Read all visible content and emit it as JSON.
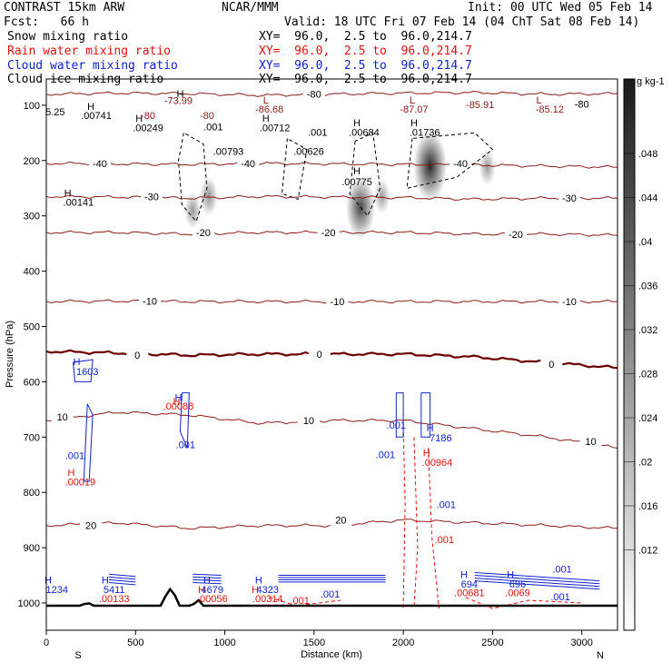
{
  "header": {
    "model": "CONTRAST 15km ARW",
    "org": "NCAR/MMM",
    "init": "Init: 00 UTC Wed 05 Feb 14",
    "fcst": "Fcst:   66 h",
    "valid": "Valid: 18 UTC Fri 07 Feb 14 (04 ChT Sat 08 Feb 14)"
  },
  "fields": [
    {
      "name": "Snow mixing ratio",
      "xy": "XY=  96.0,  2.5 to  96.0,214.7",
      "color": "#000000"
    },
    {
      "name": "Rain water mixing ratio",
      "xy": "XY=  96.0,  2.5 to  96.0,214.7",
      "color": "#e01010"
    },
    {
      "name": "Cloud water mixing ratio",
      "xy": "XY=  96.0,  2.5 to  96.0,214.7",
      "color": "#1020d0"
    },
    {
      "name": "Cloud ice mixing ratio",
      "xy": "XY=  96.0,  2.5 to  96.0,214.7",
      "color": "#000000"
    }
  ],
  "chart_data": {
    "type": "contour cross-section",
    "xlabel": "Distance (km)",
    "ylabel": "Pressure (hPa)",
    "xlim": [
      0,
      3200
    ],
    "ylim": [
      1050,
      70
    ],
    "xticks": [
      0,
      500,
      1000,
      1500,
      2000,
      2500,
      3000
    ],
    "yticks": [
      100,
      200,
      300,
      400,
      500,
      600,
      700,
      800,
      900,
      1000
    ],
    "direction_left": "S",
    "direction_right": "N",
    "colorbar": {
      "unit": "g kg-1",
      "labels": [
        ".048",
        ".044",
        ".04",
        ".036",
        ".032",
        ".028",
        ".024",
        ".02",
        ".016",
        ".012"
      ],
      "low_color": "#ffffff",
      "high_color": "#000000"
    },
    "isotherms": [
      {
        "label": "-80",
        "p": [
          80,
          78,
          79,
          82,
          80,
          78,
          77,
          80,
          79
        ],
        "label_at": [
          [
            1500,
            80
          ],
          [
            3000,
            98
          ]
        ]
      },
      {
        "label": "-40",
        "p": [
          205,
          206,
          207,
          205,
          206,
          207,
          208,
          210,
          212
        ],
        "label_at": [
          [
            300,
            205
          ],
          [
            1130,
            205
          ],
          [
            2320,
            205
          ]
        ]
      },
      {
        "label": "-30",
        "p": [
          265,
          266,
          268,
          265,
          266,
          267,
          270,
          268,
          268
        ],
        "label_at": [
          [
            590,
            265
          ],
          [
            2930,
            268
          ]
        ]
      },
      {
        "label": "-20",
        "p": [
          330,
          330,
          333,
          330,
          330,
          330,
          333,
          333,
          335
        ],
        "label_at": [
          [
            880,
            330
          ],
          [
            1580,
            330
          ],
          [
            2630,
            333
          ]
        ]
      },
      {
        "label": "-10",
        "p": [
          455,
          454,
          455,
          455,
          455,
          455,
          455,
          455,
          455
        ],
        "label_at": [
          [
            580,
            454
          ],
          [
            1630,
            455
          ],
          [
            2930,
            455
          ]
        ]
      },
      {
        "label": "0",
        "p": [
          545,
          548,
          552,
          550,
          550,
          550,
          555,
          565,
          575
        ],
        "label_at": [
          [
            510,
            552
          ],
          [
            1530,
            550
          ],
          [
            2830,
            568
          ]
        ]
      },
      {
        "label": "10",
        "p": [
          670,
          655,
          660,
          675,
          670,
          670,
          685,
          700,
          720
        ],
        "label_at": [
          [
            90,
            663
          ],
          [
            1470,
            670
          ],
          [
            3050,
            708
          ]
        ]
      },
      {
        "label": "20",
        "p": [
          860,
          855,
          865,
          860,
          860,
          850,
          855,
          860,
          865
        ],
        "label_at": [
          [
            250,
            860
          ],
          [
            1650,
            850
          ]
        ]
      }
    ],
    "labels": [
      {
        "text": "H",
        "x": 750,
        "y": 85,
        "color": "#000000"
      },
      {
        "text": "-73.99",
        "x": 740,
        "y": 98,
        "color": "#8b1a1a"
      },
      {
        "text": "5.25",
        "x": 50,
        "y": 118,
        "color": "#000000"
      },
      {
        "text": "H",
        "x": 250,
        "y": 108,
        "color": "#000000"
      },
      {
        "text": ".00741",
        "x": 280,
        "y": 125,
        "color": "#000000"
      },
      {
        "text": "H",
        "x": 520,
        "y": 130,
        "color": "#000000"
      },
      {
        "text": ".00249",
        "x": 570,
        "y": 147,
        "color": "#000000"
      },
      {
        "text": "-80",
        "x": 570,
        "y": 125,
        "color": "#8b1a1a"
      },
      {
        "text": "-80",
        "x": 900,
        "y": 125,
        "color": "#8b1a1a"
      },
      {
        "text": ".001",
        "x": 935,
        "y": 145,
        "color": "#000000"
      },
      {
        "text": "L",
        "x": 1230,
        "y": 97,
        "color": "#8b1a1a"
      },
      {
        "text": "-86.68",
        "x": 1250,
        "y": 113,
        "color": "#8b1a1a"
      },
      {
        "text": "H",
        "x": 1230,
        "y": 130,
        "color": "#000000"
      },
      {
        "text": ".00712",
        "x": 1280,
        "y": 147,
        "color": "#000000"
      },
      {
        "text": ".001",
        "x": 1520,
        "y": 155,
        "color": "#000000"
      },
      {
        "text": "L",
        "x": 2050,
        "y": 97,
        "color": "#8b1a1a"
      },
      {
        "text": "-87.07",
        "x": 2060,
        "y": 113,
        "color": "#8b1a1a"
      },
      {
        "text": "H",
        "x": 1740,
        "y": 138,
        "color": "#000000"
      },
      {
        "text": ".00684",
        "x": 1780,
        "y": 155,
        "color": "#000000"
      },
      {
        "text": "H",
        "x": 2060,
        "y": 138,
        "color": "#000000"
      },
      {
        "text": ".01736",
        "x": 2120,
        "y": 155,
        "color": "#000000"
      },
      {
        "text": "-85.91",
        "x": 2430,
        "y": 105,
        "color": "#8b1a1a"
      },
      {
        "text": "L",
        "x": 2760,
        "y": 97,
        "color": "#8b1a1a"
      },
      {
        "text": "-85.12",
        "x": 2820,
        "y": 113,
        "color": "#8b1a1a"
      },
      {
        "text": ".00793",
        "x": 1020,
        "y": 190,
        "color": "#000000"
      },
      {
        "text": ".00626",
        "x": 1470,
        "y": 190,
        "color": "#000000"
      },
      {
        "text": "H",
        "x": 120,
        "y": 265,
        "color": "#000000"
      },
      {
        "text": ".00141",
        "x": 180,
        "y": 282,
        "color": "#000000"
      },
      {
        "text": "H",
        "x": 1740,
        "y": 225,
        "color": "#000000"
      },
      {
        "text": ".00775",
        "x": 1740,
        "y": 245,
        "color": "#000000"
      },
      {
        "text": "H",
        "x": 170,
        "y": 570,
        "color": "#1020d0"
      },
      {
        "text": "1603",
        "x": 230,
        "y": 588,
        "color": "#1020d0"
      },
      {
        "text": "H",
        "x": 740,
        "y": 635,
        "color": "#1020d0"
      },
      {
        "text": ".00088",
        "x": 740,
        "y": 650,
        "color": "#e01010"
      },
      {
        "text": "H",
        "x": 730,
        "y": 642,
        "color": "#e01010"
      },
      {
        "text": ".001",
        "x": 780,
        "y": 720,
        "color": "#1020d0"
      },
      {
        "text": ".001",
        "x": 160,
        "y": 740,
        "color": "#1020d0"
      },
      {
        "text": "H",
        "x": 140,
        "y": 770,
        "color": "#e01010"
      },
      {
        "text": ".00019",
        "x": 190,
        "y": 787,
        "color": "#e01010"
      },
      {
        "text": ".001",
        "x": 1960,
        "y": 685,
        "color": "#1020d0"
      },
      {
        "text": ".001",
        "x": 1900,
        "y": 738,
        "color": "#1020d0"
      },
      {
        "text": "H",
        "x": 2150,
        "y": 690,
        "color": "#1020d0"
      },
      {
        "text": "7186",
        "x": 2210,
        "y": 708,
        "color": "#1020d0"
      },
      {
        "text": "H",
        "x": 2130,
        "y": 735,
        "color": "#e01010"
      },
      {
        "text": ".00964",
        "x": 2190,
        "y": 752,
        "color": "#e01010"
      },
      {
        "text": ".001",
        "x": 2240,
        "y": 828,
        "color": "#1020d0"
      },
      {
        "text": ".001",
        "x": 2230,
        "y": 892,
        "color": "#e01010"
      },
      {
        "text": "H",
        "x": 10,
        "y": 965,
        "color": "#1020d0"
      },
      {
        "text": "1234",
        "x": 60,
        "y": 982,
        "color": "#1020d0"
      },
      {
        "text": "H",
        "x": 330,
        "y": 965,
        "color": "#1020d0"
      },
      {
        "text": "5411",
        "x": 380,
        "y": 982,
        "color": "#1020d0"
      },
      {
        "text": ".00133",
        "x": 380,
        "y": 998,
        "color": "#e01010"
      },
      {
        "text": "H",
        "x": 900,
        "y": 965,
        "color": "#1020d0"
      },
      {
        "text": "4679",
        "x": 930,
        "y": 982,
        "color": "#1020d0"
      },
      {
        "text": "H",
        "x": 870,
        "y": 982,
        "color": "#e01010"
      },
      {
        "text": ".00056",
        "x": 930,
        "y": 998,
        "color": "#e01010"
      },
      {
        "text": "H",
        "x": 1190,
        "y": 965,
        "color": "#1020d0"
      },
      {
        "text": "4323",
        "x": 1240,
        "y": 982,
        "color": "#1020d0"
      },
      {
        "text": "H",
        "x": 1170,
        "y": 982,
        "color": "#e01010"
      },
      {
        "text": ".00314",
        "x": 1240,
        "y": 998,
        "color": "#e01010"
      },
      {
        "text": ".001",
        "x": 1420,
        "y": 1002,
        "color": "#e01010"
      },
      {
        "text": ".001",
        "x": 1590,
        "y": 990,
        "color": "#1020d0"
      },
      {
        "text": "H",
        "x": 2340,
        "y": 955,
        "color": "#1020d0"
      },
      {
        "text": "694",
        "x": 2370,
        "y": 972,
        "color": "#1020d0"
      },
      {
        "text": ".00681",
        "x": 2370,
        "y": 988,
        "color": "#e01010"
      },
      {
        "text": "H",
        "x": 2600,
        "y": 955,
        "color": "#1020d0"
      },
      {
        "text": "696",
        "x": 2640,
        "y": 972,
        "color": "#1020d0"
      },
      {
        "text": ".0069",
        "x": 2640,
        "y": 988,
        "color": "#e01010"
      },
      {
        "text": ".001",
        "x": 2890,
        "y": 945,
        "color": "#1020d0"
      },
      {
        "text": ".001",
        "x": 2880,
        "y": 995,
        "color": "#1020d0"
      }
    ],
    "shading": [
      {
        "x": 2150,
        "p": 210,
        "value": 0.05
      },
      {
        "x": 1760,
        "p": 285,
        "value": 0.04
      },
      {
        "x": 910,
        "p": 265,
        "value": 0.015
      },
      {
        "x": 2470,
        "p": 212,
        "value": 0.012
      },
      {
        "x": 820,
        "p": 290,
        "value": 0.013
      },
      {
        "x": 1880,
        "p": 265,
        "value": 0.011
      }
    ]
  }
}
